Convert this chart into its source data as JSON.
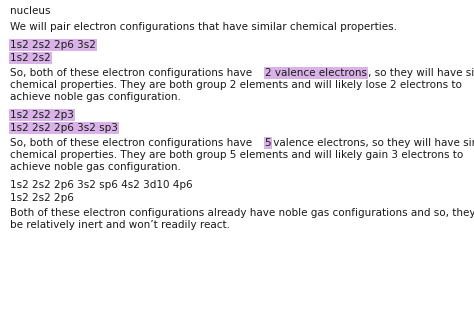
{
  "background_color": "#ffffff",
  "highlight_color": "#d9b3e8",
  "text_color": "#1a1a1a",
  "font_size": 7.5,
  "title_line": "nucleus",
  "intro_line": "We will pair electron configurations that have similar chemical properties.",
  "block1_hi_lines": [
    "1s2 2s2 2p6 3s2",
    "1s2 2s2"
  ],
  "block1_pre": "So, both of these electron configurations have ",
  "block1_hi": "2 valence electrons",
  "block1_post": ", so they will have similar",
  "block1_rest": [
    "chemical properties. They are both group 2 elements and will likely lose 2 electrons to",
    "achieve noble gas configuration."
  ],
  "block2_hi_lines": [
    "1s2 2s2 2p3",
    "1s2 2s2 2p6 3s2 sp3"
  ],
  "block2_pre": "So, both of these electron configurations have ",
  "block2_hi": "5",
  "block2_post": " valence electrons, so they will have similar",
  "block2_rest": [
    "chemical properties. They are both group 5 elements and will likely gain 3 electrons to",
    "achieve noble gas configuration."
  ],
  "block3_lines": [
    "1s2 2s2 2p6 3s2 sp6 4s2 3d10 4p6",
    "1s2 2s2 2p6"
  ],
  "block3_rest": [
    "Both of these electron configurations already have noble gas configurations and so, they will",
    "be relatively inert and won’t readily react."
  ]
}
